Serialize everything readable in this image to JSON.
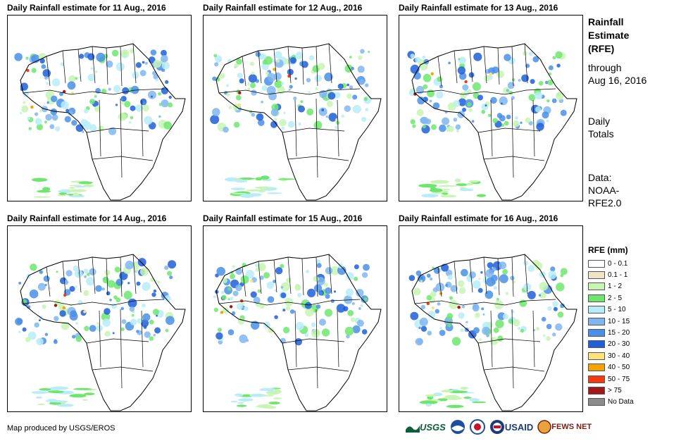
{
  "panels": [
    {
      "title": "Daily Rainfall estimate for 11 Aug., 2016"
    },
    {
      "title": "Daily Rainfall estimate for 12 Aug., 2016"
    },
    {
      "title": "Daily Rainfall estimate for 13 Aug., 2016"
    },
    {
      "title": "Daily Rainfall estimate for 14 Aug., 2016"
    },
    {
      "title": "Daily Rainfall estimate for 15 Aug., 2016"
    },
    {
      "title": "Daily Rainfall estimate for 16 Aug., 2016"
    }
  ],
  "sidebar": {
    "title_line1": "Rainfall",
    "title_line2": "Estimate",
    "title_line3": "(RFE)",
    "through_label": "through",
    "through_date": "Aug 16, 2016",
    "totals_line1": "Daily",
    "totals_line2": "Totals",
    "data_line1": "Data:",
    "data_line2": "NOAA-",
    "data_line3": "RFE2.0"
  },
  "legend": {
    "title": "RFE (mm)",
    "items": [
      {
        "label": "0 - 0.1",
        "color": "#ffffff"
      },
      {
        "label": "0.1 - 1",
        "color": "#f2e3c6"
      },
      {
        "label": "1 - 2",
        "color": "#c8f5b4"
      },
      {
        "label": "2 - 5",
        "color": "#6ee66e"
      },
      {
        "label": "5 - 10",
        "color": "#b8ecf8"
      },
      {
        "label": "10 - 15",
        "color": "#7fb6f0"
      },
      {
        "label": "15 - 20",
        "color": "#4a8fe8"
      },
      {
        "label": "20 - 30",
        "color": "#1f5fd8"
      },
      {
        "label": "30 - 40",
        "color": "#ffe27a"
      },
      {
        "label": "40 - 50",
        "color": "#f5a300"
      },
      {
        "label": "50 - 75",
        "color": "#f03c10"
      },
      {
        "label": "> 75",
        "color": "#a01818"
      },
      {
        "label": "No Data",
        "color": "#8c8c8c"
      }
    ]
  },
  "footer": {
    "credit": "Map produced by USGS/EROS",
    "logo_usgs": "USGS",
    "logo_usaid": "USAID",
    "logo_fews": "FEWS NET"
  }
}
